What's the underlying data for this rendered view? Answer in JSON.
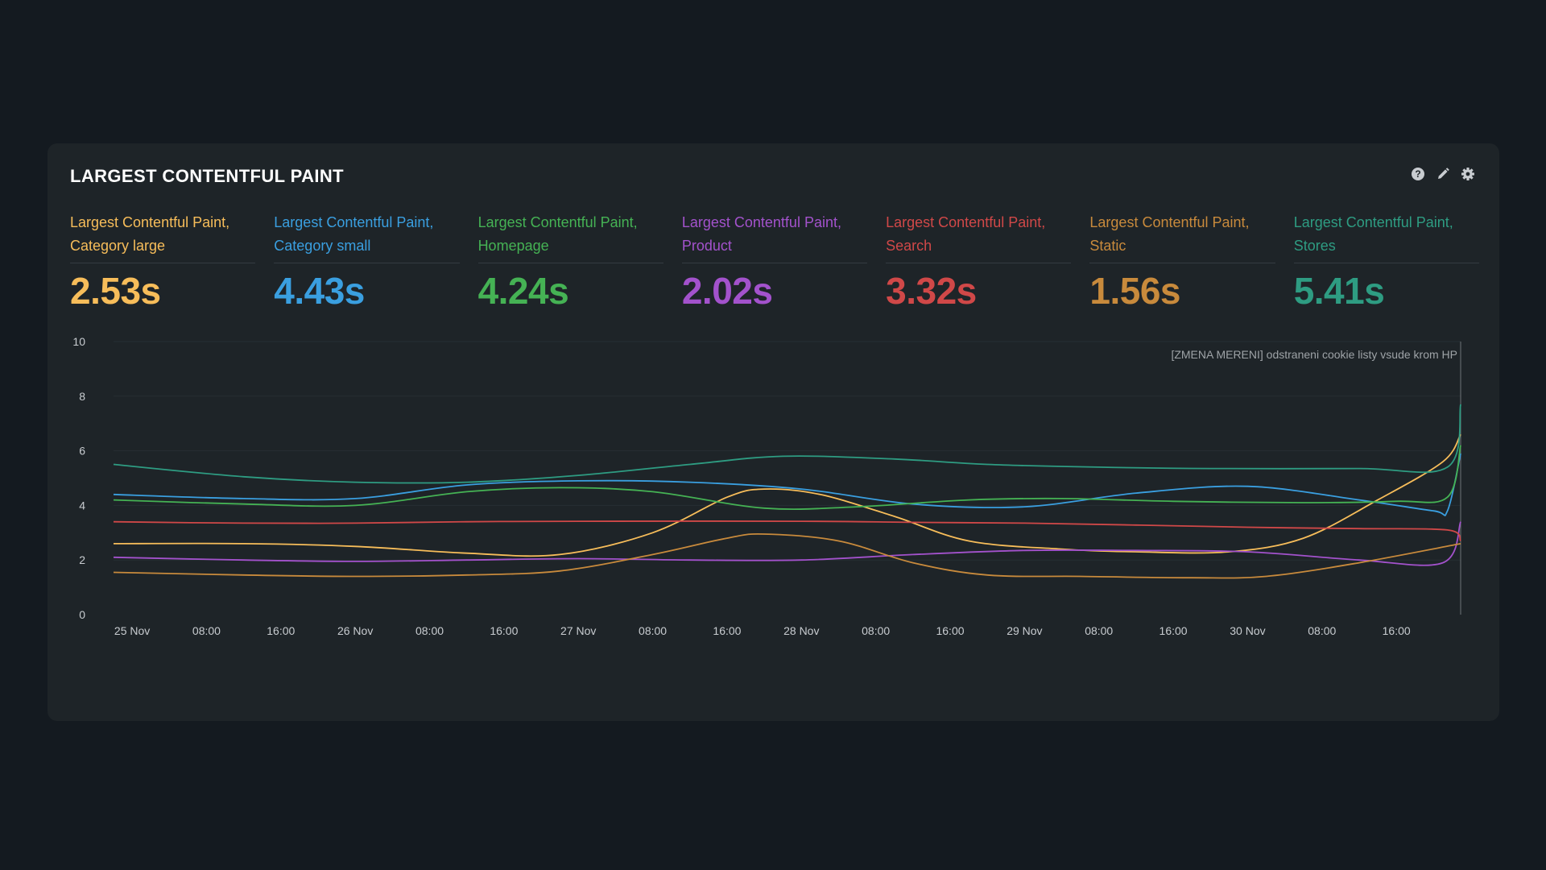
{
  "panel": {
    "title": "LARGEST CONTENTFUL PAINT"
  },
  "toolbar": {
    "icons": [
      "help-icon",
      "edit-icon",
      "settings-icon"
    ]
  },
  "metrics": [
    {
      "label": "Largest Contentful Paint, Category large",
      "value": "2.53s",
      "color": "#f7bd5a"
    },
    {
      "label": "Largest Contentful Paint, Category small",
      "value": "4.43s",
      "color": "#3a9fe0"
    },
    {
      "label": "Largest Contentful Paint, Homepage",
      "value": "4.24s",
      "color": "#45b254"
    },
    {
      "label": "Largest Contentful Paint, Product",
      "value": "2.02s",
      "color": "#a352cc"
    },
    {
      "label": "Largest Contentful Paint, Search",
      "value": "3.32s",
      "color": "#d04848"
    },
    {
      "label": "Largest Contentful Paint, Static",
      "value": "1.56s",
      "color": "#c88a3c"
    },
    {
      "label": "Largest Contentful Paint, Stores",
      "value": "5.41s",
      "color": "#2e9c82"
    }
  ],
  "chart_data": {
    "type": "line",
    "ylim": [
      0,
      10
    ],
    "yticks": [
      0,
      2,
      4,
      6,
      8,
      10
    ],
    "xlim": [
      "2024-11-24T22:00",
      "2024-11-30T22:55"
    ],
    "xticks": [
      {
        "x": "2024-11-25T00:00",
        "label": "25 Nov"
      },
      {
        "x": "2024-11-25T08:00",
        "label": "08:00"
      },
      {
        "x": "2024-11-25T16:00",
        "label": "16:00"
      },
      {
        "x": "2024-11-26T00:00",
        "label": "26 Nov"
      },
      {
        "x": "2024-11-26T08:00",
        "label": "08:00"
      },
      {
        "x": "2024-11-26T16:00",
        "label": "16:00"
      },
      {
        "x": "2024-11-27T00:00",
        "label": "27 Nov"
      },
      {
        "x": "2024-11-27T08:00",
        "label": "08:00"
      },
      {
        "x": "2024-11-27T16:00",
        "label": "16:00"
      },
      {
        "x": "2024-11-28T00:00",
        "label": "28 Nov"
      },
      {
        "x": "2024-11-28T08:00",
        "label": "08:00"
      },
      {
        "x": "2024-11-28T16:00",
        "label": "16:00"
      },
      {
        "x": "2024-11-29T00:00",
        "label": "29 Nov"
      },
      {
        "x": "2024-11-29T08:00",
        "label": "08:00"
      },
      {
        "x": "2024-11-29T16:00",
        "label": "16:00"
      },
      {
        "x": "2024-11-30T00:00",
        "label": "30 Nov"
      },
      {
        "x": "2024-11-30T08:00",
        "label": "08:00"
      },
      {
        "x": "2024-11-30T16:00",
        "label": "16:00"
      }
    ],
    "annotation": {
      "x": "2024-11-30T22:55",
      "text": "[ZMENA MERENI] odstraneni cookie listy vsude krom HP"
    },
    "grid": true,
    "series": [
      {
        "name": "Largest Contentful Paint, Category large",
        "color": "#f7bd5a",
        "points": [
          [
            "2024-11-24T22:00",
            2.6
          ],
          [
            "2024-11-25T12:00",
            2.6
          ],
          [
            "2024-11-26T00:00",
            2.5
          ],
          [
            "2024-11-26T12:00",
            2.25
          ],
          [
            "2024-11-26T22:00",
            2.2
          ],
          [
            "2024-11-27T08:00",
            3.0
          ],
          [
            "2024-11-27T16:00",
            4.3
          ],
          [
            "2024-11-27T20:00",
            4.6
          ],
          [
            "2024-11-28T02:00",
            4.4
          ],
          [
            "2024-11-28T10:00",
            3.6
          ],
          [
            "2024-11-28T18:00",
            2.7
          ],
          [
            "2024-11-29T04:00",
            2.4
          ],
          [
            "2024-11-29T12:00",
            2.3
          ],
          [
            "2024-11-29T22:00",
            2.3
          ],
          [
            "2024-11-30T06:00",
            2.8
          ],
          [
            "2024-11-30T14:00",
            4.2
          ],
          [
            "2024-11-30T21:00",
            5.6
          ],
          [
            "2024-11-30T22:55",
            6.6
          ]
        ]
      },
      {
        "name": "Largest Contentful Paint, Category small",
        "color": "#3a9fe0",
        "points": [
          [
            "2024-11-24T22:00",
            4.4
          ],
          [
            "2024-11-25T12:00",
            4.25
          ],
          [
            "2024-11-26T00:00",
            4.25
          ],
          [
            "2024-11-26T12:00",
            4.75
          ],
          [
            "2024-11-27T00:00",
            4.9
          ],
          [
            "2024-11-27T12:00",
            4.85
          ],
          [
            "2024-11-28T00:00",
            4.6
          ],
          [
            "2024-11-28T12:00",
            4.05
          ],
          [
            "2024-11-29T00:00",
            3.95
          ],
          [
            "2024-11-29T12:00",
            4.45
          ],
          [
            "2024-11-30T00:00",
            4.7
          ],
          [
            "2024-11-30T12:00",
            4.2
          ],
          [
            "2024-11-30T20:00",
            3.8
          ],
          [
            "2024-11-30T21:30",
            3.8
          ],
          [
            "2024-11-30T22:55",
            5.9
          ]
        ]
      },
      {
        "name": "Largest Contentful Paint, Homepage",
        "color": "#45b254",
        "points": [
          [
            "2024-11-24T22:00",
            4.2
          ],
          [
            "2024-11-25T12:00",
            4.05
          ],
          [
            "2024-11-26T00:00",
            4.0
          ],
          [
            "2024-11-26T12:00",
            4.5
          ],
          [
            "2024-11-26T22:00",
            4.65
          ],
          [
            "2024-11-27T08:00",
            4.5
          ],
          [
            "2024-11-27T20:00",
            3.9
          ],
          [
            "2024-11-28T06:00",
            3.95
          ],
          [
            "2024-11-28T18:00",
            4.2
          ],
          [
            "2024-11-29T04:00",
            4.25
          ],
          [
            "2024-11-29T16:00",
            4.15
          ],
          [
            "2024-11-30T06:00",
            4.1
          ],
          [
            "2024-11-30T16:00",
            4.15
          ],
          [
            "2024-11-30T21:30",
            4.3
          ],
          [
            "2024-11-30T22:55",
            6.2
          ]
        ]
      },
      {
        "name": "Largest Contentful Paint, Product",
        "color": "#a352cc",
        "points": [
          [
            "2024-11-24T22:00",
            2.1
          ],
          [
            "2024-11-25T12:00",
            2.0
          ],
          [
            "2024-11-26T00:00",
            1.95
          ],
          [
            "2024-11-26T12:00",
            2.0
          ],
          [
            "2024-11-27T00:00",
            2.05
          ],
          [
            "2024-11-27T12:00",
            2.0
          ],
          [
            "2024-11-28T00:00",
            2.0
          ],
          [
            "2024-11-28T12:00",
            2.2
          ],
          [
            "2024-11-29T00:00",
            2.35
          ],
          [
            "2024-11-29T12:00",
            2.35
          ],
          [
            "2024-11-30T00:00",
            2.3
          ],
          [
            "2024-11-30T12:00",
            2.0
          ],
          [
            "2024-11-30T21:00",
            1.9
          ],
          [
            "2024-11-30T22:55",
            3.4
          ]
        ]
      },
      {
        "name": "Largest Contentful Paint, Search",
        "color": "#d04848",
        "points": [
          [
            "2024-11-24T22:00",
            3.4
          ],
          [
            "2024-11-25T12:00",
            3.35
          ],
          [
            "2024-11-26T00:00",
            3.35
          ],
          [
            "2024-11-26T12:00",
            3.4
          ],
          [
            "2024-11-27T00:00",
            3.42
          ],
          [
            "2024-11-28T00:00",
            3.42
          ],
          [
            "2024-11-28T12:00",
            3.38
          ],
          [
            "2024-11-29T00:00",
            3.35
          ],
          [
            "2024-11-29T12:00",
            3.28
          ],
          [
            "2024-11-30T00:00",
            3.2
          ],
          [
            "2024-11-30T12:00",
            3.15
          ],
          [
            "2024-11-30T21:30",
            3.1
          ],
          [
            "2024-11-30T22:55",
            2.7
          ]
        ]
      },
      {
        "name": "Largest Contentful Paint, Static",
        "color": "#c88a3c",
        "points": [
          [
            "2024-11-24T22:00",
            1.55
          ],
          [
            "2024-11-25T12:00",
            1.45
          ],
          [
            "2024-11-26T00:00",
            1.4
          ],
          [
            "2024-11-26T12:00",
            1.45
          ],
          [
            "2024-11-26T22:00",
            1.6
          ],
          [
            "2024-11-27T08:00",
            2.2
          ],
          [
            "2024-11-27T16:00",
            2.8
          ],
          [
            "2024-11-27T20:00",
            2.95
          ],
          [
            "2024-11-28T04:00",
            2.7
          ],
          [
            "2024-11-28T12:00",
            1.9
          ],
          [
            "2024-11-28T20:00",
            1.45
          ],
          [
            "2024-11-29T06:00",
            1.4
          ],
          [
            "2024-11-29T18:00",
            1.35
          ],
          [
            "2024-11-30T02:00",
            1.4
          ],
          [
            "2024-11-30T12:00",
            1.9
          ],
          [
            "2024-11-30T22:55",
            2.6
          ]
        ]
      },
      {
        "name": "Largest Contentful Paint, Stores",
        "color": "#2e9c82",
        "points": [
          [
            "2024-11-24T22:00",
            5.5
          ],
          [
            "2024-11-25T12:00",
            5.05
          ],
          [
            "2024-11-26T00:00",
            4.85
          ],
          [
            "2024-11-26T12:00",
            4.85
          ],
          [
            "2024-11-27T00:00",
            5.1
          ],
          [
            "2024-11-27T12:00",
            5.5
          ],
          [
            "2024-11-27T22:00",
            5.8
          ],
          [
            "2024-11-28T10:00",
            5.7
          ],
          [
            "2024-11-28T20:00",
            5.5
          ],
          [
            "2024-11-29T08:00",
            5.4
          ],
          [
            "2024-11-29T20:00",
            5.35
          ],
          [
            "2024-11-30T12:00",
            5.35
          ],
          [
            "2024-11-30T21:30",
            5.4
          ],
          [
            "2024-11-30T22:55",
            7.7
          ]
        ]
      }
    ]
  }
}
